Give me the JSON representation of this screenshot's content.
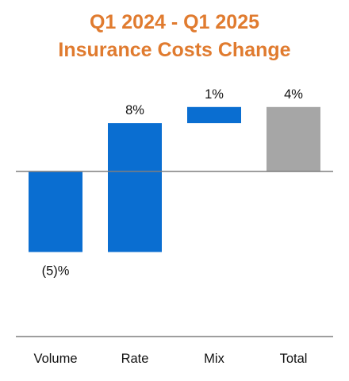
{
  "chart_data": {
    "type": "bar",
    "subtype": "waterfall",
    "title_lines": [
      "Q1 2024 - Q1 2025",
      "Insurance Costs Change"
    ],
    "categories": [
      "Volume",
      "Rate",
      "Mix",
      "Total"
    ],
    "values": [
      -5,
      8,
      1,
      4
    ],
    "value_labels": [
      "(5)%",
      "8%",
      "1%",
      "4%"
    ],
    "bar_kinds": [
      "delta",
      "delta",
      "delta",
      "total"
    ],
    "xlabel": "",
    "ylabel": "",
    "ylim": [
      -9.9,
      6
    ],
    "grid": false,
    "legend": "none"
  },
  "colors": {
    "title": "#E07B2F",
    "delta_bar": "#0A6ED1",
    "total_bar": "#A6A6A6",
    "baseline": "#7F7F7F",
    "label_text": "#111111"
  }
}
